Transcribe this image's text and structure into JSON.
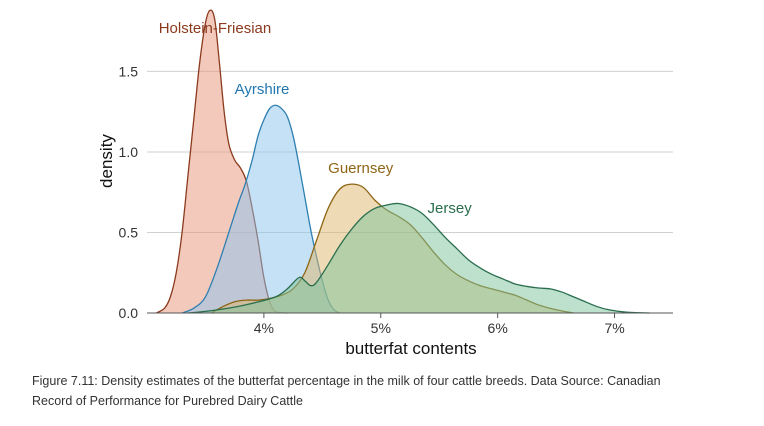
{
  "chart_data": {
    "type": "area",
    "xlabel": "butterfat contents",
    "ylabel": "density",
    "xlim": [
      3.0,
      7.5
    ],
    "ylim": [
      0,
      1.9
    ],
    "x_ticks": [
      {
        "value": 4,
        "label": "4%"
      },
      {
        "value": 5,
        "label": "5%"
      },
      {
        "value": 6,
        "label": "6%"
      },
      {
        "value": 7,
        "label": "7%"
      }
    ],
    "y_ticks": [
      {
        "value": 0,
        "label": "0.0"
      },
      {
        "value": 0.5,
        "label": "0.5"
      },
      {
        "value": 1.0,
        "label": "1.0"
      },
      {
        "value": 1.5,
        "label": "1.5"
      }
    ],
    "grid": "horizontal",
    "series": [
      {
        "name": "Holstein-Friesian",
        "fill": "#E8937A",
        "stroke": "#8B3A1E",
        "text_color": "#8B3A1E",
        "label_at": [
          3.1,
          1.74
        ],
        "points": [
          [
            3.08,
            0.0
          ],
          [
            3.15,
            0.03
          ],
          [
            3.2,
            0.1
          ],
          [
            3.25,
            0.25
          ],
          [
            3.3,
            0.5
          ],
          [
            3.35,
            0.85
          ],
          [
            3.4,
            1.2
          ],
          [
            3.45,
            1.55
          ],
          [
            3.5,
            1.8
          ],
          [
            3.54,
            1.88
          ],
          [
            3.58,
            1.82
          ],
          [
            3.62,
            1.55
          ],
          [
            3.66,
            1.25
          ],
          [
            3.7,
            1.05
          ],
          [
            3.75,
            0.95
          ],
          [
            3.8,
            0.9
          ],
          [
            3.85,
            0.82
          ],
          [
            3.9,
            0.65
          ],
          [
            3.95,
            0.45
          ],
          [
            4.0,
            0.22
          ],
          [
            4.05,
            0.07
          ],
          [
            4.1,
            0.01
          ],
          [
            4.2,
            0.0
          ]
        ]
      },
      {
        "name": "Ayrshire",
        "fill": "#8CC4EE",
        "stroke": "#2E7FB0",
        "text_color": "#2177B0",
        "label_at": [
          3.75,
          1.36
        ],
        "points": [
          [
            3.3,
            0.0
          ],
          [
            3.4,
            0.03
          ],
          [
            3.5,
            0.1
          ],
          [
            3.6,
            0.28
          ],
          [
            3.7,
            0.5
          ],
          [
            3.78,
            0.68
          ],
          [
            3.84,
            0.8
          ],
          [
            3.9,
            0.95
          ],
          [
            3.95,
            1.1
          ],
          [
            4.0,
            1.2
          ],
          [
            4.05,
            1.27
          ],
          [
            4.1,
            1.29
          ],
          [
            4.15,
            1.27
          ],
          [
            4.2,
            1.22
          ],
          [
            4.25,
            1.1
          ],
          [
            4.3,
            0.92
          ],
          [
            4.35,
            0.72
          ],
          [
            4.4,
            0.52
          ],
          [
            4.45,
            0.35
          ],
          [
            4.5,
            0.2
          ],
          [
            4.55,
            0.08
          ],
          [
            4.6,
            0.02
          ],
          [
            4.65,
            0.0
          ]
        ]
      },
      {
        "name": "Guernsey",
        "fill": "#DDB56A",
        "stroke": "#8E6515",
        "text_color": "#8E6515",
        "label_at": [
          4.55,
          0.87
        ],
        "points": [
          [
            3.55,
            0.0
          ],
          [
            3.65,
            0.04
          ],
          [
            3.75,
            0.07
          ],
          [
            3.85,
            0.08
          ],
          [
            3.95,
            0.08
          ],
          [
            4.05,
            0.09
          ],
          [
            4.15,
            0.11
          ],
          [
            4.25,
            0.15
          ],
          [
            4.35,
            0.25
          ],
          [
            4.45,
            0.45
          ],
          [
            4.55,
            0.65
          ],
          [
            4.65,
            0.77
          ],
          [
            4.75,
            0.8
          ],
          [
            4.85,
            0.78
          ],
          [
            4.95,
            0.7
          ],
          [
            5.05,
            0.64
          ],
          [
            5.15,
            0.6
          ],
          [
            5.25,
            0.55
          ],
          [
            5.35,
            0.47
          ],
          [
            5.45,
            0.38
          ],
          [
            5.55,
            0.3
          ],
          [
            5.65,
            0.24
          ],
          [
            5.75,
            0.2
          ],
          [
            5.85,
            0.17
          ],
          [
            5.95,
            0.15
          ],
          [
            6.05,
            0.13
          ],
          [
            6.15,
            0.11
          ],
          [
            6.25,
            0.08
          ],
          [
            6.35,
            0.05
          ],
          [
            6.5,
            0.02
          ],
          [
            6.65,
            0.0
          ]
        ]
      },
      {
        "name": "Jersey",
        "fill": "#7CC39C",
        "stroke": "#2A6E4E",
        "text_color": "#2A6E4E",
        "label_at": [
          5.4,
          0.62
        ],
        "points": [
          [
            3.35,
            0.0
          ],
          [
            3.5,
            0.01
          ],
          [
            3.7,
            0.03
          ],
          [
            3.9,
            0.06
          ],
          [
            4.1,
            0.1
          ],
          [
            4.2,
            0.15
          ],
          [
            4.3,
            0.22
          ],
          [
            4.35,
            0.2
          ],
          [
            4.4,
            0.17
          ],
          [
            4.45,
            0.19
          ],
          [
            4.55,
            0.3
          ],
          [
            4.65,
            0.42
          ],
          [
            4.75,
            0.52
          ],
          [
            4.85,
            0.6
          ],
          [
            4.95,
            0.65
          ],
          [
            5.05,
            0.67
          ],
          [
            5.15,
            0.68
          ],
          [
            5.25,
            0.66
          ],
          [
            5.35,
            0.62
          ],
          [
            5.45,
            0.55
          ],
          [
            5.55,
            0.47
          ],
          [
            5.65,
            0.4
          ],
          [
            5.75,
            0.33
          ],
          [
            5.85,
            0.28
          ],
          [
            5.95,
            0.24
          ],
          [
            6.05,
            0.21
          ],
          [
            6.15,
            0.18
          ],
          [
            6.25,
            0.165
          ],
          [
            6.35,
            0.155
          ],
          [
            6.45,
            0.15
          ],
          [
            6.55,
            0.13
          ],
          [
            6.65,
            0.1
          ],
          [
            6.75,
            0.07
          ],
          [
            6.85,
            0.04
          ],
          [
            6.95,
            0.02
          ],
          [
            7.1,
            0.005
          ],
          [
            7.3,
            0.0
          ]
        ]
      }
    ]
  },
  "figure": {
    "caption_line1": "Figure 7.11: Density estimates of the butterfat percentage in the milk of four cattle breeds. Data Source: Canadian",
    "caption_line2": "Record of Performance for Purebred Dairy Cattle"
  }
}
